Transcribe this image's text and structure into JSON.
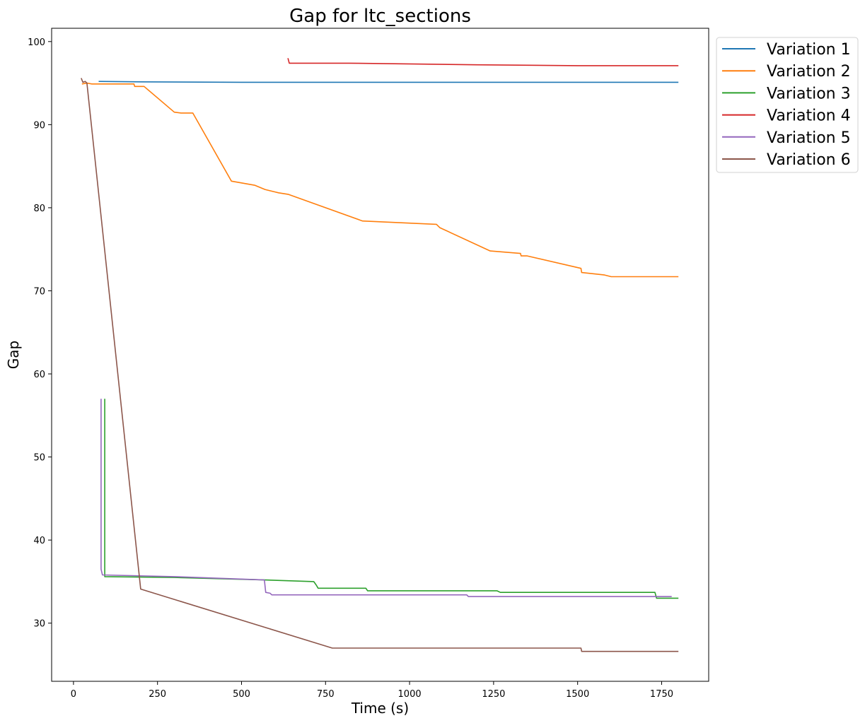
{
  "chart_data": {
    "type": "line",
    "title": "Gap for ltc_sections",
    "xlabel": "Time (s)",
    "ylabel": "Gap",
    "xlim": [
      -65,
      1890
    ],
    "ylim": [
      23,
      101.6
    ],
    "xticks": [
      0,
      250,
      500,
      750,
      1000,
      1250,
      1500,
      1750
    ],
    "yticks": [
      30,
      40,
      50,
      60,
      70,
      80,
      90,
      100
    ],
    "grid": false,
    "legend_position": "outside-right-top",
    "series": [
      {
        "name": "Variation 1",
        "color": "#1f77b4",
        "points": [
          [
            75,
            95.2
          ],
          [
            200,
            95.15
          ],
          [
            500,
            95.1
          ],
          [
            1000,
            95.1
          ],
          [
            1500,
            95.1
          ],
          [
            1800,
            95.1
          ]
        ]
      },
      {
        "name": "Variation 2",
        "color": "#ff7f0e",
        "points": [
          [
            25,
            94.9
          ],
          [
            40,
            95.0
          ],
          [
            55,
            94.9
          ],
          [
            180,
            94.9
          ],
          [
            182,
            94.6
          ],
          [
            210,
            94.6
          ],
          [
            300,
            91.5
          ],
          [
            320,
            91.4
          ],
          [
            355,
            91.4
          ],
          [
            470,
            83.2
          ],
          [
            540,
            82.7
          ],
          [
            570,
            82.2
          ],
          [
            600,
            81.9
          ],
          [
            610,
            81.8
          ],
          [
            640,
            81.6
          ],
          [
            860,
            78.4
          ],
          [
            1080,
            78.0
          ],
          [
            1090,
            77.6
          ],
          [
            1240,
            74.8
          ],
          [
            1330,
            74.5
          ],
          [
            1332,
            74.2
          ],
          [
            1350,
            74.2
          ],
          [
            1510,
            72.7
          ],
          [
            1512,
            72.2
          ],
          [
            1580,
            71.9
          ],
          [
            1600,
            71.7
          ],
          [
            1800,
            71.7
          ]
        ]
      },
      {
        "name": "Variation 3",
        "color": "#2ca02c",
        "points": [
          [
            93,
            57.0
          ],
          [
            93,
            36.4
          ],
          [
            93,
            35.6
          ],
          [
            300,
            35.5
          ],
          [
            570,
            35.2
          ],
          [
            715,
            35.0
          ],
          [
            722,
            34.6
          ],
          [
            728,
            34.2
          ],
          [
            870,
            34.2
          ],
          [
            875,
            33.9
          ],
          [
            1260,
            33.9
          ],
          [
            1270,
            33.7
          ],
          [
            1730,
            33.7
          ],
          [
            1735,
            33.0
          ],
          [
            1800,
            33.0
          ]
        ]
      },
      {
        "name": "Variation 4",
        "color": "#d62728",
        "points": [
          [
            638,
            98.0
          ],
          [
            642,
            97.4
          ],
          [
            820,
            97.4
          ],
          [
            1200,
            97.2
          ],
          [
            1500,
            97.1
          ],
          [
            1800,
            97.1
          ]
        ]
      },
      {
        "name": "Variation 5",
        "color": "#9467bd",
        "points": [
          [
            82,
            57.0
          ],
          [
            82,
            36.5
          ],
          [
            86,
            35.8
          ],
          [
            300,
            35.6
          ],
          [
            568,
            35.2
          ],
          [
            572,
            33.7
          ],
          [
            585,
            33.6
          ],
          [
            590,
            33.4
          ],
          [
            1170,
            33.4
          ],
          [
            1175,
            33.2
          ],
          [
            1780,
            33.2
          ]
        ]
      },
      {
        "name": "Variation 6",
        "color": "#8c564b",
        "points": [
          [
            23,
            95.6
          ],
          [
            28,
            95.1
          ],
          [
            35,
            95.2
          ],
          [
            40,
            95.0
          ],
          [
            200,
            34.1
          ],
          [
            770,
            27.0
          ],
          [
            1510,
            27.0
          ],
          [
            1512,
            26.6
          ],
          [
            1800,
            26.6
          ]
        ]
      }
    ]
  }
}
